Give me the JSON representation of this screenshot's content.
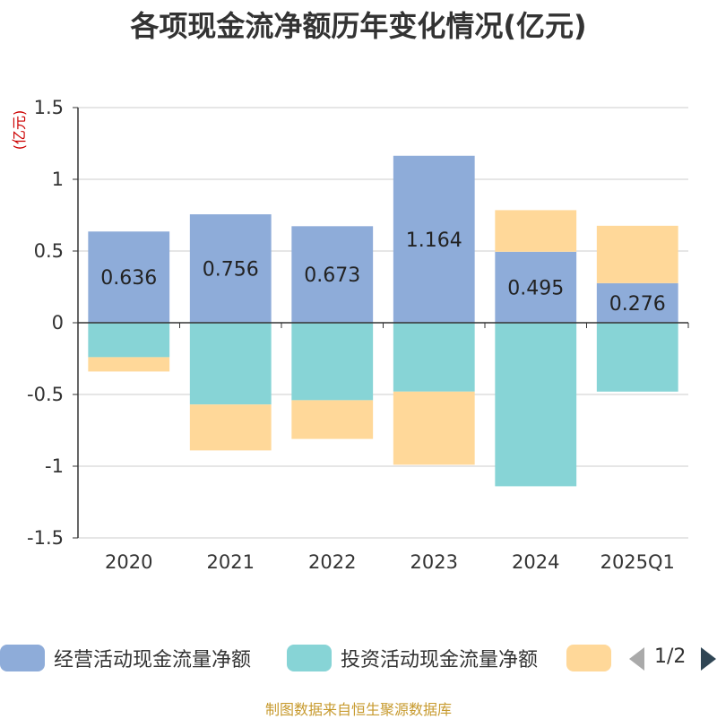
{
  "chart_data": {
    "type": "bar",
    "stacked": true,
    "title": "各项现金流净额历年变化情况(亿元)",
    "ylabel": "(亿元)",
    "xlabel": "",
    "ylim": [
      -1.5,
      1.5
    ],
    "yticks": [
      -1.5,
      -1,
      -0.5,
      0,
      0.5,
      1,
      1.5
    ],
    "ytick_labels": [
      "-1.5",
      "-1",
      "-0.5",
      "0",
      "0.5",
      "1",
      "1.5"
    ],
    "categories": [
      "2020",
      "2021",
      "2022",
      "2023",
      "2024",
      "2025Q1"
    ],
    "series": [
      {
        "name": "经营活动现金流量净额",
        "color": "#8eacd9",
        "values": [
          0.636,
          0.756,
          0.673,
          1.164,
          0.495,
          0.276
        ],
        "labels": [
          "0.636",
          "0.756",
          "0.673",
          "1.164",
          "0.495",
          "0.276"
        ]
      },
      {
        "name": "投资活动现金流量净额",
        "color": "#87d4d6",
        "values": [
          -0.24,
          -0.57,
          -0.54,
          -0.48,
          -1.14,
          -0.48
        ]
      },
      {
        "name": "",
        "color": "#ffd899",
        "values": [
          -0.1,
          -0.32,
          -0.27,
          -0.51,
          0.29,
          0.4
        ]
      }
    ],
    "legend_position": "bottom"
  },
  "legend": {
    "items": [
      {
        "label": "经营活动现金流量净额",
        "color": "#8eacd9"
      },
      {
        "label": "投资活动现金流量净额",
        "color": "#87d4d6"
      },
      {
        "label": "",
        "color": "#ffd899"
      }
    ],
    "pager_text": "1/2"
  },
  "footer": {
    "source": "制图数据来自恒生聚源数据库"
  }
}
